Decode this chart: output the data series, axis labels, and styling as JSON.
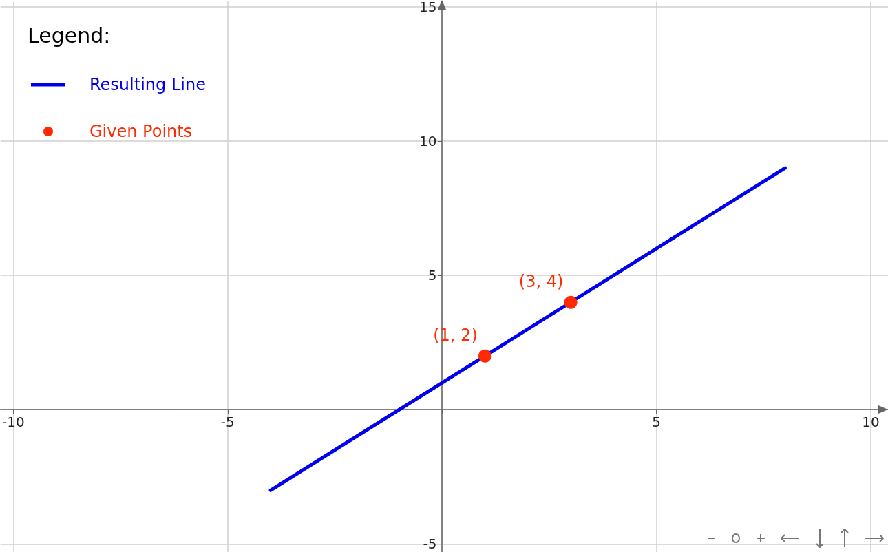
{
  "chart_data": {
    "type": "line",
    "legend_title": "Legend:",
    "legend": "top left",
    "grid": true,
    "xlim": [
      -10.3,
      10.4
    ],
    "xticks": [
      -10,
      -5,
      {
        "value": 0,
        "label": null
      },
      5,
      10
    ],
    "ylim": [
      -5.3,
      15.2
    ],
    "yticks": [
      -5,
      {
        "value": 0,
        "label": null
      },
      5,
      10,
      15
    ],
    "series": [
      {
        "name": "Resulting Line",
        "type": "line",
        "color": "#0000ee",
        "x": [
          -4,
          8
        ],
        "values": [
          -3,
          9
        ],
        "marker": "none",
        "line_style": "solid"
      },
      {
        "name": "Given Points",
        "type": "scatter",
        "color": "#ff2a00",
        "x": [
          1,
          3
        ],
        "values": [
          2,
          4
        ],
        "marker": "circle",
        "value_labels": [
          "(1, 2)",
          "(3, 4)"
        ]
      }
    ]
  }
}
